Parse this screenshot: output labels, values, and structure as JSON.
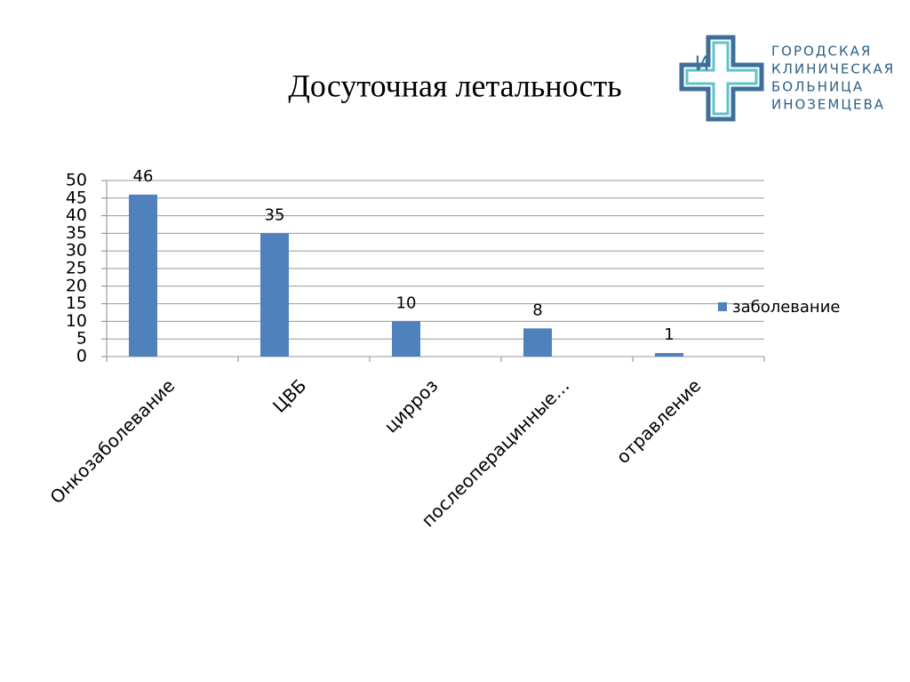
{
  "chart_data": {
    "type": "bar",
    "title": "Досуточная летальность",
    "categories": [
      "Онкозаболевание",
      "ЦВБ",
      "цирроз",
      "послеоперацинные…",
      "отравление"
    ],
    "series": [
      {
        "name": "заболевание",
        "color": "#4f81bd",
        "values": [
          46,
          35,
          10,
          8,
          1
        ]
      }
    ],
    "ylim": [
      0,
      50
    ],
    "yticks": [
      0,
      5,
      10,
      15,
      20,
      25,
      30,
      35,
      40,
      45,
      50
    ],
    "grid": true,
    "legend": "right"
  },
  "logo": {
    "letter": "И",
    "lines": [
      "ГОРОДСКАЯ",
      "КЛИНИЧЕСКАЯ",
      "БОЛЬНИЦА",
      "ИНОЗЕМЦЕВА"
    ]
  }
}
